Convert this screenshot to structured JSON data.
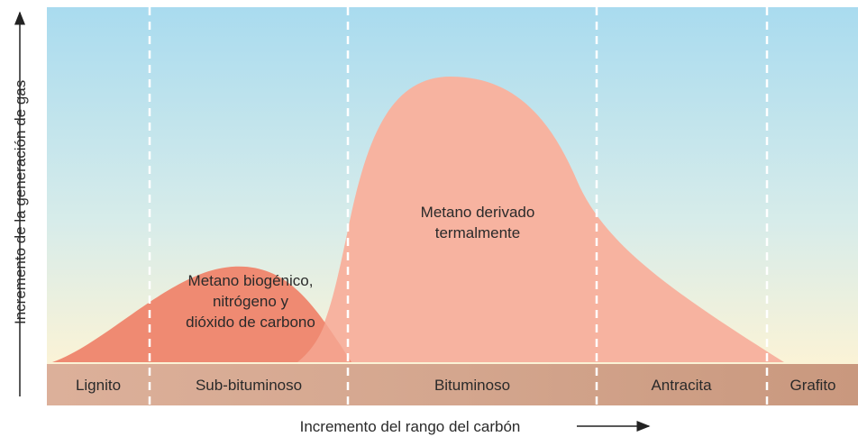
{
  "diagram": {
    "y_axis_label": "Incremento de la generación de gas",
    "x_axis_label": "Incremento del rango del carbón",
    "ranks": [
      "Lignito",
      "Sub-bituminoso",
      "Bituminoso",
      "Antracita",
      "Grafito"
    ],
    "regions": [
      {
        "lines": [
          "Metano biogénico,",
          "nitrógeno y",
          "dióxido de carbono"
        ]
      },
      {
        "lines": [
          "Metano derivado",
          "termalmente"
        ]
      }
    ]
  }
}
